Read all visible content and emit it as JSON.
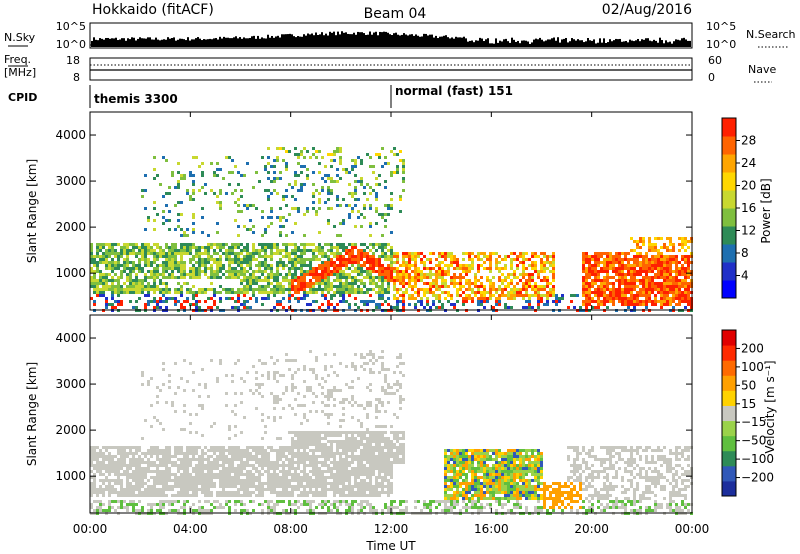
{
  "header": {
    "station": "Hokkaido (fitACF)",
    "beam": "Beam 04",
    "date": "02/Aug/2016"
  },
  "strips": {
    "nsky_label": "N.Sky",
    "nsearch_label": "N.Search",
    "nsky_ticks": [
      "10^5",
      "10^0"
    ],
    "nsearch_ticks": [
      "10^5",
      "10^0"
    ],
    "freq_label_1": "Freq.",
    "freq_label_2": "[MHz]",
    "freq_ticks": [
      "18",
      "8"
    ],
    "nave_label": "Nave",
    "nave_ticks": [
      "60",
      "0"
    ],
    "cpid_label": "CPID",
    "cpid_segments": [
      {
        "text": "themis 3300",
        "start_hour": 0
      },
      {
        "text": "normal (fast) 151",
        "start_hour": 12
      }
    ]
  },
  "chart_data": [
    {
      "type": "heatmap",
      "name": "power",
      "ylabel": "Slant Range [km]",
      "ylim": [
        200,
        4500
      ],
      "yticks": [
        "4000",
        "3000",
        "2000",
        "1000"
      ],
      "xlim_hours": [
        0,
        24
      ],
      "colorbar_label": "Power [dB]",
      "colorbar_ticks": [
        "28",
        "24",
        "20",
        "16",
        "12",
        "8",
        "4"
      ],
      "colorbar_colors": [
        "#0000ff",
        "#2030c8",
        "#1e6fb0",
        "#2e8b57",
        "#7fbf3f",
        "#c8d830",
        "#ffd700",
        "#ffa500",
        "#ff6400",
        "#ff2000"
      ]
    },
    {
      "type": "heatmap",
      "name": "velocity",
      "ylabel": "Slant Range [km]",
      "ylim": [
        200,
        4500
      ],
      "yticks": [
        "4000",
        "3000",
        "2000",
        "1000"
      ],
      "xlim_hours": [
        0,
        24
      ],
      "colorbar_label": "Velocity [m s⁻¹]",
      "colorbar_ticks": [
        "200",
        "100",
        "50",
        "15",
        "−15",
        "−50",
        "−100",
        "−200"
      ],
      "colorbar_colors": [
        "#1c2e9c",
        "#3058b8",
        "#2e8b57",
        "#5fbf3f",
        "#9ad24a",
        "#c8c8c0",
        "#ffd200",
        "#ffa000",
        "#ff6a00",
        "#ff2a00",
        "#e00000"
      ]
    }
  ],
  "x_axis": {
    "tick_labels": [
      "00:00",
      "04:00",
      "08:00",
      "12:00",
      "16:00",
      "20:00",
      "00:00"
    ],
    "label": "Time UT"
  }
}
